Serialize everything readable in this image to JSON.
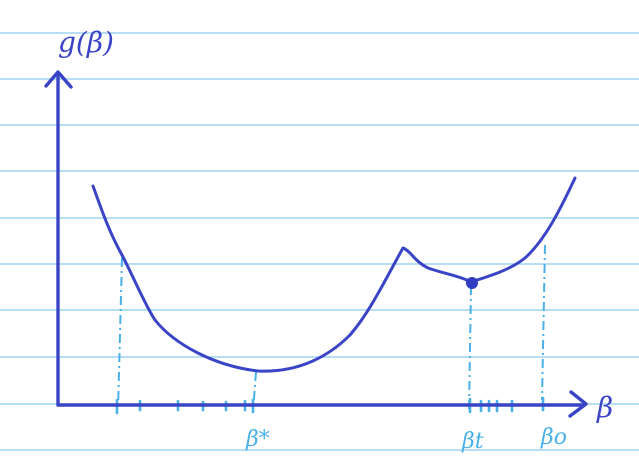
{
  "diagram": {
    "y_label": "g(β)",
    "x_label": "β",
    "point_labels": {
      "star": "β*",
      "t": "βt",
      "o": "βo"
    }
  },
  "colors": {
    "ruled_line": "#8ec9ef",
    "ink": "#3a44c6",
    "dashed_ink": "#4ab0e8",
    "dot": "#2f3ec0",
    "background": "#ffffff"
  }
}
